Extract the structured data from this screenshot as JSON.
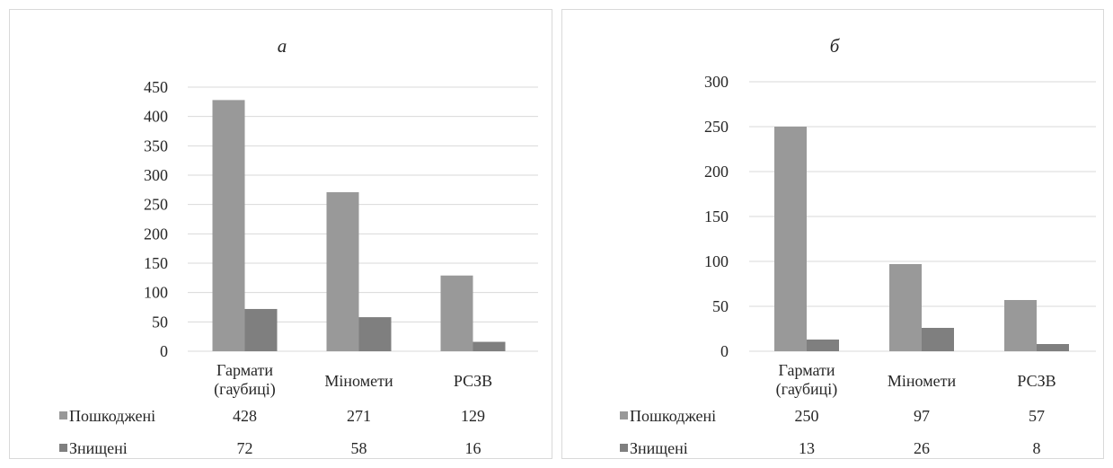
{
  "chart_data": [
    {
      "type": "bar",
      "title": "а",
      "categories": [
        [
          "Гармати",
          "(гаубиці)"
        ],
        [
          "Мінomети",
          ""
        ],
        [
          "РСЗВ",
          ""
        ]
      ],
      "series": [
        {
          "name": "Пошкоджені",
          "values": [
            428,
            271,
            129
          ],
          "color": "#999999"
        },
        {
          "name": "Знищені",
          "values": [
            72,
            58,
            16
          ],
          "color": "#7f7f7f"
        }
      ],
      "ylim": [
        0,
        450
      ],
      "yticks": [
        "0",
        "50",
        "100",
        "150",
        "200",
        "250",
        "300",
        "350",
        "400",
        "450"
      ],
      "grid": true,
      "legend": "data-table"
    },
    {
      "type": "bar",
      "title": "б",
      "categories": [
        [
          "Гармати",
          "(гаубиці)"
        ],
        [
          "Мінomети",
          ""
        ],
        [
          "РСЗВ",
          ""
        ]
      ],
      "series": [
        {
          "name": "Пошкоджені",
          "values": [
            250,
            97,
            57
          ],
          "color": "#999999"
        },
        {
          "name": "Знищені",
          "values": [
            13,
            26,
            8
          ],
          "color": "#7f7f7f"
        }
      ],
      "ylim": [
        0,
        300
      ],
      "yticks": [
        "0",
        "50",
        "100",
        "150",
        "200",
        "250",
        "300"
      ],
      "grid": true,
      "legend": "data-table"
    }
  ]
}
